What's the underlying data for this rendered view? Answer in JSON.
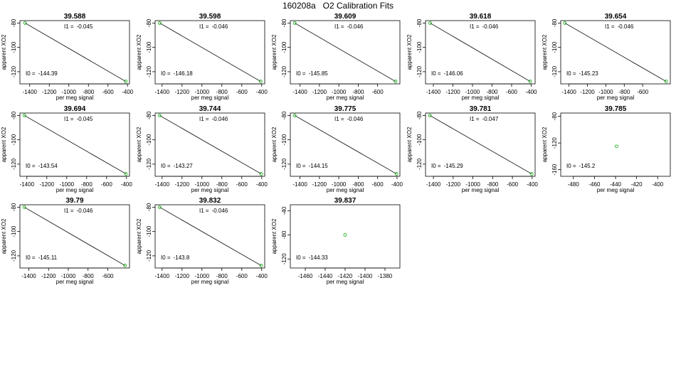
{
  "title": "160208a   O2 Calibration Fits",
  "colors": {
    "fit_line": "#000000",
    "points": "#00aa00",
    "frame": "#000000"
  },
  "chart_data": [
    {
      "type": "scatter",
      "title": "39.588",
      "xlabel": "per meg signal",
      "ylabel": "apparent XO2",
      "i1_label": "I1 =",
      "i1": "-0.045",
      "i0_label": "I0 =",
      "i0": "-144.39",
      "xlim": [
        -1500,
        -380
      ],
      "ylim": [
        -130,
        -78
      ],
      "xticks": [
        -1400,
        -1200,
        -1000,
        -800,
        -600,
        -400
      ],
      "xticklabels": [
        "-1400",
        "-1200",
        "-1000",
        "-800",
        "-600",
        "-400"
      ],
      "yticks": [
        -80,
        -100,
        -120
      ],
      "yticklabels": [
        "-80",
        "-100",
        "-120"
      ],
      "points": [
        [
          -1447,
          -80
        ],
        [
          -418,
          -128
        ]
      ],
      "fit": [
        [
          -1447,
          -80
        ],
        [
          -418,
          -128
        ]
      ]
    },
    {
      "type": "scatter",
      "title": "39.598",
      "xlabel": "per meg signal",
      "ylabel": "apparent XO2",
      "i1_label": "I1 =",
      "i1": "-0.046",
      "i0_label": "I0 =",
      "i0": "-146.18",
      "xlim": [
        -1470,
        -370
      ],
      "ylim": [
        -130,
        -78
      ],
      "xticks": [
        -1400,
        -1200,
        -1000,
        -800,
        -600,
        -400
      ],
      "xticklabels": [
        "-1400",
        "-1200",
        "-1000",
        "-800",
        "-600",
        "-400"
      ],
      "yticks": [
        -80,
        -100,
        -120
      ],
      "yticklabels": [
        "-80",
        "-100",
        "-120"
      ],
      "points": [
        [
          -1424,
          -80
        ],
        [
          -410,
          -128
        ]
      ],
      "fit": [
        [
          -1424,
          -80
        ],
        [
          -410,
          -128
        ]
      ]
    },
    {
      "type": "scatter",
      "title": "39.609",
      "xlabel": "per meg signal",
      "ylabel": "apparent XO2",
      "i1_label": "I1 =",
      "i1": "-0.046",
      "i0_label": "I0 =",
      "i0": "-145.85",
      "xlim": [
        -1500,
        -370
      ],
      "ylim": [
        -130,
        -78
      ],
      "xticks": [
        -1400,
        -1200,
        -1000,
        -800,
        -600
      ],
      "xticklabels": [
        "-1400",
        "-1200",
        "-1000",
        "-800",
        "-600"
      ],
      "yticks": [
        -80,
        -100,
        -120
      ],
      "yticklabels": [
        "-80",
        "-100",
        "-120"
      ],
      "points": [
        [
          -1455,
          -80
        ],
        [
          -415,
          -128
        ]
      ],
      "fit": [
        [
          -1455,
          -80
        ],
        [
          -415,
          -128
        ]
      ]
    },
    {
      "type": "scatter",
      "title": "39.618",
      "xlabel": "per meg signal",
      "ylabel": "apparent XO2",
      "i1_label": "I1 =",
      "i1": "-0.046",
      "i0_label": "I0 =",
      "i0": "-146.06",
      "xlim": [
        -1480,
        -360
      ],
      "ylim": [
        -130,
        -78
      ],
      "xticks": [
        -1400,
        -1200,
        -1000,
        -800,
        -600,
        -400
      ],
      "xticklabels": [
        "-1400",
        "-1200",
        "-1000",
        "-800",
        "-600",
        "-400"
      ],
      "yticks": [
        -80,
        -100,
        -120
      ],
      "yticklabels": [
        "-80",
        "-100",
        "-120"
      ],
      "points": [
        [
          -1433,
          -80
        ],
        [
          -410,
          -128
        ]
      ],
      "fit": [
        [
          -1433,
          -80
        ],
        [
          -410,
          -128
        ]
      ]
    },
    {
      "type": "scatter",
      "title": "39.654",
      "xlabel": "per meg signal",
      "ylabel": "apparent XO2",
      "i1_label": "I1 =",
      "i1": "-0.046",
      "i0_label": "I0 =",
      "i0": "-145.23",
      "xlim": [
        -1490,
        -300
      ],
      "ylim": [
        -130,
        -78
      ],
      "xticks": [
        -1400,
        -1200,
        -1000,
        -800,
        -600
      ],
      "xticklabels": [
        "-1400",
        "-1200",
        "-1000",
        "-800",
        "-600"
      ],
      "yticks": [
        -80,
        -100,
        -120
      ],
      "yticklabels": [
        "-80",
        "-100",
        "-120"
      ],
      "points": [
        [
          -1445,
          -80
        ],
        [
          -345,
          -128
        ]
      ],
      "fit": [
        [
          -1445,
          -80
        ],
        [
          -345,
          -128
        ]
      ]
    },
    {
      "type": "scatter",
      "title": "39.694",
      "xlabel": "per meg signal",
      "ylabel": "apparent XO2",
      "i1_label": "I1 =",
      "i1": "-0.045",
      "i0_label": "I0 =",
      "i0": "-143.54",
      "xlim": [
        -1470,
        -370
      ],
      "ylim": [
        -130,
        -78
      ],
      "xticks": [
        -1400,
        -1200,
        -1000,
        -800,
        -600,
        -400
      ],
      "xticklabels": [
        "-1400",
        "-1200",
        "-1000",
        "-800",
        "-600",
        "-400"
      ],
      "yticks": [
        -80,
        -100,
        -120
      ],
      "yticklabels": [
        "-80",
        "-100",
        "-120"
      ],
      "points": [
        [
          -1425,
          -80
        ],
        [
          -405,
          -128
        ]
      ],
      "fit": [
        [
          -1425,
          -80
        ],
        [
          -405,
          -128
        ]
      ]
    },
    {
      "type": "scatter",
      "title": "39.744",
      "xlabel": "per meg signal",
      "ylabel": "apparent XO2",
      "i1_label": "I1 =",
      "i1": "-0.046",
      "i0_label": "I0 =",
      "i0": "-143.27",
      "xlim": [
        -1470,
        -370
      ],
      "ylim": [
        -130,
        -78
      ],
      "xticks": [
        -1400,
        -1200,
        -1000,
        -800,
        -600,
        -400
      ],
      "xticklabels": [
        "-1400",
        "-1200",
        "-1000",
        "-800",
        "-600",
        "-400"
      ],
      "yticks": [
        -80,
        -100,
        -120
      ],
      "yticklabels": [
        "-80",
        "-100",
        "-120"
      ],
      "points": [
        [
          -1425,
          -80
        ],
        [
          -405,
          -128
        ]
      ],
      "fit": [
        [
          -1425,
          -80
        ],
        [
          -405,
          -128
        ]
      ]
    },
    {
      "type": "scatter",
      "title": "39.775",
      "xlabel": "per meg signal",
      "ylabel": "apparent XO2",
      "i1_label": "I1 =",
      "i1": "-0.046",
      "i0_label": "I0 =",
      "i0": "-144.15",
      "xlim": [
        -1500,
        -370
      ],
      "ylim": [
        -130,
        -78
      ],
      "xticks": [
        -1400,
        -1200,
        -1000,
        -800,
        -600,
        -400
      ],
      "xticklabels": [
        "-1400",
        "-1200",
        "-1000",
        "-800",
        "-600",
        "-400"
      ],
      "yticks": [
        -80,
        -100,
        -120
      ],
      "yticklabels": [
        "-80",
        "-100",
        "-120"
      ],
      "points": [
        [
          -1455,
          -80
        ],
        [
          -405,
          -128
        ]
      ],
      "fit": [
        [
          -1455,
          -80
        ],
        [
          -405,
          -128
        ]
      ]
    },
    {
      "type": "scatter",
      "title": "39.781",
      "xlabel": "per meg signal",
      "ylabel": "apparent XO2",
      "i1_label": "I1 =",
      "i1": "-0.047",
      "i0_label": "I0 =",
      "i0": "-145.29",
      "xlim": [
        -1480,
        -370
      ],
      "ylim": [
        -130,
        -78
      ],
      "xticks": [
        -1400,
        -1200,
        -1000,
        -800,
        -600,
        -400
      ],
      "xticklabels": [
        "-1400",
        "-1200",
        "-1000",
        "-800",
        "-600",
        "-400"
      ],
      "yticks": [
        -80,
        -100,
        -120
      ],
      "yticklabels": [
        "-80",
        "-100",
        "-120"
      ],
      "points": [
        [
          -1436,
          -80
        ],
        [
          -405,
          -128
        ]
      ],
      "fit": [
        [
          -1436,
          -80
        ],
        [
          -405,
          -128
        ]
      ]
    },
    {
      "type": "scatter",
      "title": "39.785",
      "xlabel": "per meg signal",
      "ylabel": "apparent XO2",
      "i0_label": "I0 =",
      "i0": "-145.2",
      "xlim": [
        -492,
        -388
      ],
      "ylim": [
        -170,
        -75
      ],
      "xticks": [
        -480,
        -460,
        -440,
        -420,
        -400
      ],
      "xticklabels": [
        "-480",
        "-460",
        "-440",
        "-420",
        "-400"
      ],
      "yticks": [
        -80,
        -120,
        -160
      ],
      "yticklabels": [
        "-80",
        "-120",
        "-160"
      ],
      "points": [
        [
          -439,
          -125
        ]
      ]
    },
    {
      "type": "scatter",
      "title": "39.79",
      "xlabel": "per meg signal",
      "ylabel": "apparent XO2",
      "i1_label": "I1 =",
      "i1": "-0.046",
      "i0_label": "I0 =",
      "i0": "-145.11",
      "xlim": [
        -1490,
        -380
      ],
      "ylim": [
        -130,
        -78
      ],
      "xticks": [
        -1400,
        -1200,
        -1000,
        -800,
        -600
      ],
      "xticklabels": [
        "-1400",
        "-1200",
        "-1000",
        "-800",
        "-600"
      ],
      "yticks": [
        -80,
        -100,
        -120
      ],
      "yticklabels": [
        "-80",
        "-100",
        "-120"
      ],
      "points": [
        [
          -1445,
          -80
        ],
        [
          -425,
          -128
        ]
      ],
      "fit": [
        [
          -1445,
          -80
        ],
        [
          -425,
          -128
        ]
      ]
    },
    {
      "type": "scatter",
      "title": "39.832",
      "xlabel": "per meg signal",
      "ylabel": "apparent XO2",
      "i1_label": "I1 =",
      "i1": "-0.046",
      "i0_label": "I0 =",
      "i0": "-143.8",
      "xlim": [
        -1470,
        -370
      ],
      "ylim": [
        -130,
        -78
      ],
      "xticks": [
        -1400,
        -1200,
        -1000,
        -800,
        -600,
        -400
      ],
      "xticklabels": [
        "-1400",
        "-1200",
        "-1000",
        "-800",
        "-600",
        "-400"
      ],
      "yticks": [
        -80,
        -100,
        -120
      ],
      "yticklabels": [
        "-80",
        "-100",
        "-120"
      ],
      "points": [
        [
          -1425,
          -80
        ],
        [
          -405,
          -128
        ]
      ],
      "fit": [
        [
          -1425,
          -80
        ],
        [
          -405,
          -128
        ]
      ]
    },
    {
      "type": "scatter",
      "title": "39.837",
      "xlabel": "per meg signal",
      "ylabel": "apparent XO2",
      "i0_label": "I0 =",
      "i0": "-144.33",
      "xlim": [
        -1475,
        -1365
      ],
      "ylim": [
        -135,
        -30
      ],
      "xticks": [
        -1460,
        -1440,
        -1420,
        -1400,
        -1380
      ],
      "xticklabels": [
        "-1460",
        "-1440",
        "-1420",
        "-1400",
        "-1380"
      ],
      "yticks": [
        -40,
        -80,
        -120
      ],
      "yticklabels": [
        "-40",
        "-80",
        "-120"
      ],
      "points": [
        [
          -1420,
          -80
        ]
      ]
    }
  ]
}
